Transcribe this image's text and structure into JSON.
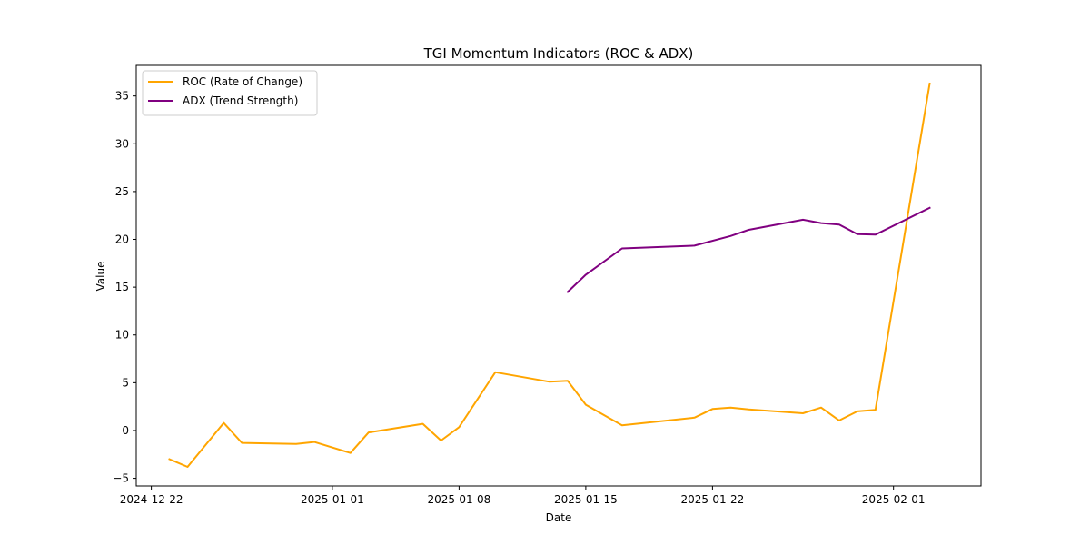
{
  "chart_data": {
    "type": "line",
    "title": "TGI Momentum Indicators (ROC & ADX)",
    "xlabel": "Date",
    "ylabel": "Value",
    "xlim": [
      "2024-12-21T04:00",
      "2025-02-05T20:00"
    ],
    "ylim": [
      -5.8,
      38.2
    ],
    "xticks": [
      "2024-12-22",
      "2025-01-01",
      "2025-01-08",
      "2025-01-15",
      "2025-01-22",
      "2025-02-01"
    ],
    "yticks": [
      -5,
      0,
      5,
      10,
      15,
      20,
      25,
      30,
      35
    ],
    "legend_position": "upper-left",
    "series": [
      {
        "name": "ROC (Rate of Change)",
        "color": "#FFA500",
        "points": [
          {
            "x": "2024-12-23",
            "y": -3.0
          },
          {
            "x": "2024-12-24",
            "y": -3.8
          },
          {
            "x": "2024-12-26",
            "y": 0.8
          },
          {
            "x": "2024-12-27",
            "y": -1.3
          },
          {
            "x": "2024-12-30",
            "y": -1.4
          },
          {
            "x": "2024-12-31",
            "y": -1.2
          },
          {
            "x": "2025-01-02",
            "y": -2.35
          },
          {
            "x": "2025-01-03",
            "y": -0.2
          },
          {
            "x": "2025-01-06",
            "y": 0.7
          },
          {
            "x": "2025-01-07",
            "y": -1.05
          },
          {
            "x": "2025-01-08",
            "y": 0.35
          },
          {
            "x": "2025-01-10",
            "y": 6.1
          },
          {
            "x": "2025-01-13",
            "y": 5.1
          },
          {
            "x": "2025-01-14",
            "y": 5.2
          },
          {
            "x": "2025-01-15",
            "y": 2.7
          },
          {
            "x": "2025-01-17",
            "y": 0.55
          },
          {
            "x": "2025-01-21",
            "y": 1.35
          },
          {
            "x": "2025-01-22",
            "y": 2.25
          },
          {
            "x": "2025-01-23",
            "y": 2.4
          },
          {
            "x": "2025-01-24",
            "y": 2.2
          },
          {
            "x": "2025-01-27",
            "y": 1.8
          },
          {
            "x": "2025-01-28",
            "y": 2.4
          },
          {
            "x": "2025-01-29",
            "y": 1.05
          },
          {
            "x": "2025-01-30",
            "y": 2.0
          },
          {
            "x": "2025-01-31",
            "y": 2.15
          },
          {
            "x": "2025-02-03",
            "y": 36.3
          }
        ]
      },
      {
        "name": "ADX (Trend Strength)",
        "color": "#800080",
        "points": [
          {
            "x": "2025-01-14",
            "y": 14.5
          },
          {
            "x": "2025-01-15",
            "y": 16.3
          },
          {
            "x": "2025-01-17",
            "y": 19.05
          },
          {
            "x": "2025-01-21",
            "y": 19.35
          },
          {
            "x": "2025-01-23",
            "y": 20.35
          },
          {
            "x": "2025-01-24",
            "y": 21.0
          },
          {
            "x": "2025-01-27",
            "y": 22.05
          },
          {
            "x": "2025-01-28",
            "y": 21.7
          },
          {
            "x": "2025-01-29",
            "y": 21.55
          },
          {
            "x": "2025-01-30",
            "y": 20.55
          },
          {
            "x": "2025-01-31",
            "y": 20.5
          },
          {
            "x": "2025-02-03",
            "y": 23.3
          }
        ]
      }
    ]
  }
}
